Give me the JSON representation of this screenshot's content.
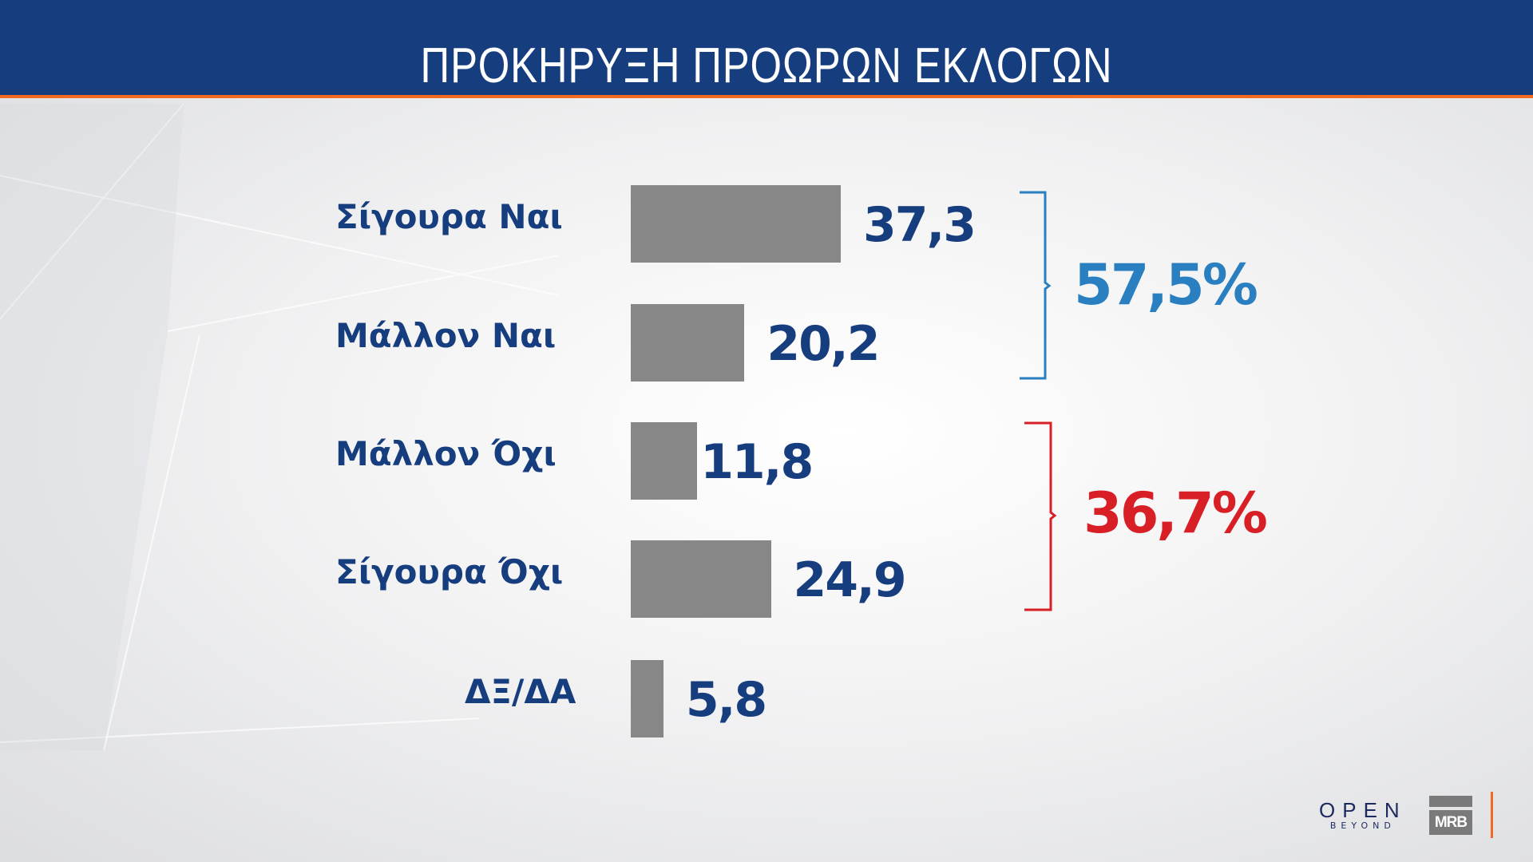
{
  "header": {
    "title": "ΠΡΟΚΗΡΥΞΗ ΠΡΟΩΡΩΝ ΕΚΛΟΓΩΝ"
  },
  "chart_data": {
    "type": "bar",
    "orientation": "horizontal",
    "title": "ΠΡΟΚΗΡΥΞΗ ΠΡΟΩΡΩΝ ΕΚΛΟΓΩΝ",
    "categories": [
      "Σίγουρα Ναι",
      "Μάλλον Ναι",
      "Μάλλον Όχι",
      "Σίγουρα Όχι",
      "ΔΞ/ΔΑ"
    ],
    "values": [
      37.3,
      20.2,
      11.8,
      24.9,
      5.8
    ],
    "value_labels": [
      "37,3",
      "20,2",
      "11,8",
      "24,9",
      "5,8"
    ],
    "bar_color": "#878787",
    "groups": [
      {
        "label": "57,5%",
        "value": 57.5,
        "members": [
          "Σίγουρα Ναι",
          "Μάλλον Ναι"
        ],
        "color": "#2a7fc1"
      },
      {
        "label": "36,7%",
        "value": 36.7,
        "members": [
          "Μάλλον Όχι",
          "Σίγουρα Όχι"
        ],
        "color": "#d91f26"
      }
    ],
    "grid": false
  },
  "logos": {
    "open": "OPEN",
    "open_sub": "BEYOND",
    "mrb": "MRB"
  },
  "colors": {
    "header": "#163d7e",
    "accent": "#f26a21",
    "text": "#163d7e"
  }
}
